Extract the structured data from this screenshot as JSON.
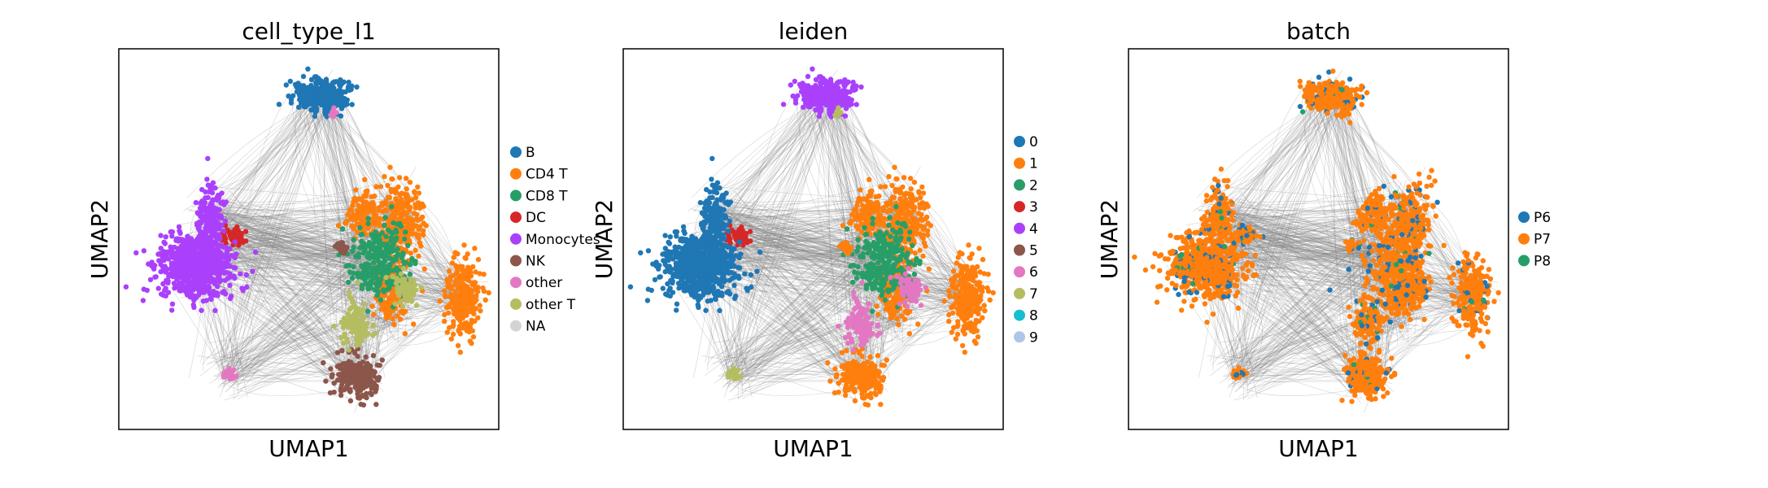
{
  "chart_data": [
    {
      "type": "scatter",
      "title": "cell_type_l1",
      "xlabel": "UMAP1",
      "ylabel": "UMAP2",
      "legend_position": "right",
      "grid": false,
      "categories": [
        {
          "name": "B",
          "color": "#1f77b4"
        },
        {
          "name": "CD4 T",
          "color": "#ff7f0e"
        },
        {
          "name": "CD8 T",
          "color": "#279e68"
        },
        {
          "name": "DC",
          "color": "#d62728"
        },
        {
          "name": "Monocytes",
          "color": "#aa40fc"
        },
        {
          "name": "NK",
          "color": "#8c564b"
        },
        {
          "name": "other",
          "color": "#e377c2"
        },
        {
          "name": "other T",
          "color": "#b5bd61"
        },
        {
          "name": "NA",
          "color": "#d3d3d3"
        }
      ]
    },
    {
      "type": "scatter",
      "title": "leiden",
      "xlabel": "UMAP1",
      "ylabel": "UMAP2",
      "legend_position": "right",
      "grid": false,
      "categories": [
        {
          "name": "0",
          "color": "#1f77b4"
        },
        {
          "name": "1",
          "color": "#ff7f0e"
        },
        {
          "name": "2",
          "color": "#279e68"
        },
        {
          "name": "3",
          "color": "#d62728"
        },
        {
          "name": "4",
          "color": "#aa40fc"
        },
        {
          "name": "5",
          "color": "#8c564b"
        },
        {
          "name": "6",
          "color": "#e377c2"
        },
        {
          "name": "7",
          "color": "#b5bd61"
        },
        {
          "name": "8",
          "color": "#17becf"
        },
        {
          "name": "9",
          "color": "#aec7e8"
        }
      ]
    },
    {
      "type": "scatter",
      "title": "batch",
      "xlabel": "UMAP1",
      "ylabel": "UMAP2",
      "legend_position": "right",
      "grid": false,
      "categories": [
        {
          "name": "P6",
          "color": "#1f77b4"
        },
        {
          "name": "P7",
          "color": "#ff7f0e"
        },
        {
          "name": "P8",
          "color": "#279e68"
        }
      ]
    }
  ]
}
